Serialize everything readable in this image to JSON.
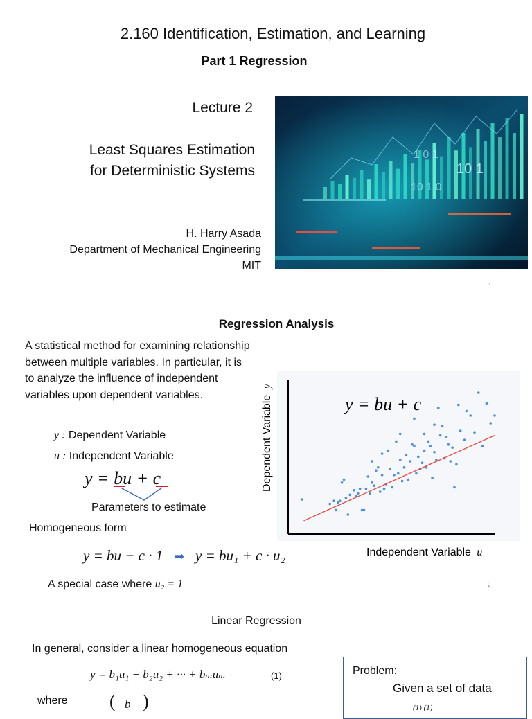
{
  "slide1": {
    "course_title": "2.160 Identification, Estimation, and Learning",
    "part": "Part 1  Regression",
    "lecture": "Lecture 2",
    "subject_line1": "Least Squares Estimation",
    "subject_line2": "for Deterministic Systems",
    "author": "H. Harry Asada",
    "department": "Department of Mechanical Engineering",
    "institution": "MIT",
    "image_overlay_numbers": [
      "1 0 1",
      "10 1",
      "10 1 0"
    ],
    "page_number": "1"
  },
  "slide2": {
    "heading": "Regression Analysis",
    "description": "A statistical method for examining relationship between multiple variables. In particular, it is to analyze the influence of  independent variables upon dependent variables.",
    "y_symbol": "y :",
    "y_label": "Dependent Variable",
    "u_symbol": "u :",
    "u_label": "Independent Variable",
    "equation": "y = bu + c",
    "parameters_note": "Parameters to estimate",
    "homogeneous_label": "Homogeneous form",
    "homogeneous_eq_left": "y = bu + c · 1",
    "homogeneous_eq_right": "y = bu₁ + c · u₂",
    "special_case_text": "A special case where",
    "special_case_eq": "u₂ = 1",
    "page_number": "2"
  },
  "chart_data": {
    "type": "scatter",
    "annotation": "y = bu + c",
    "xlabel_text": "Independent Variable",
    "xlabel_symbol": "u",
    "ylabel_text": "Dependent Variable",
    "ylabel_symbol": "y",
    "xlim": [
      0,
      10
    ],
    "ylim": [
      0,
      10
    ],
    "grid": false,
    "fit_line": {
      "x": [
        0.5,
        10
      ],
      "y": [
        0.6,
        6.2
      ],
      "color": "#e8473f"
    },
    "point_color": "#4a8fe0",
    "points": [
      [
        0.4,
        2.0
      ],
      [
        1.8,
        1.7
      ],
      [
        2.0,
        1.9
      ],
      [
        2.1,
        1.3
      ],
      [
        2.2,
        1.8
      ],
      [
        2.3,
        1.9
      ],
      [
        2.4,
        3.1
      ],
      [
        2.5,
        3.3
      ],
      [
        2.6,
        2.1
      ],
      [
        2.7,
        1.0
      ],
      [
        2.8,
        2.3
      ],
      [
        3.0,
        2.6
      ],
      [
        3.1,
        2.2
      ],
      [
        3.2,
        2.4
      ],
      [
        3.3,
        2.7
      ],
      [
        3.4,
        1.3
      ],
      [
        3.5,
        1.3
      ],
      [
        3.6,
        2.7
      ],
      [
        3.7,
        3.5
      ],
      [
        3.8,
        2.4
      ],
      [
        3.9,
        3.1
      ],
      [
        4.0,
        2.9
      ],
      [
        4.1,
        3.9
      ],
      [
        4.2,
        4.1
      ],
      [
        4.3,
        2.5
      ],
      [
        4.4,
        3.6
      ],
      [
        4.5,
        2.7
      ],
      [
        4.6,
        3.0
      ],
      [
        4.7,
        5.2
      ],
      [
        4.8,
        4.0
      ],
      [
        4.9,
        2.8
      ],
      [
        5.0,
        3.6
      ],
      [
        5.1,
        5.8
      ],
      [
        5.2,
        3.7
      ],
      [
        5.3,
        4.6
      ],
      [
        5.4,
        3.2
      ],
      [
        5.5,
        4.1
      ],
      [
        5.6,
        4.9
      ],
      [
        5.7,
        3.3
      ],
      [
        5.8,
        4.5
      ],
      [
        5.9,
        5.6
      ],
      [
        6.0,
        5.5
      ],
      [
        6.1,
        3.7
      ],
      [
        6.2,
        4.8
      ],
      [
        6.3,
        4.0
      ],
      [
        6.4,
        4.4
      ],
      [
        6.5,
        5.2
      ],
      [
        6.6,
        4.1
      ],
      [
        6.7,
        5.8
      ],
      [
        6.8,
        5.5
      ],
      [
        6.9,
        3.4
      ],
      [
        7.0,
        5.1
      ],
      [
        7.1,
        4.6
      ],
      [
        7.2,
        8.0
      ],
      [
        7.3,
        6.2
      ],
      [
        7.4,
        6.8
      ],
      [
        7.5,
        4.7
      ],
      [
        7.6,
        6.1
      ],
      [
        7.7,
        5.6
      ],
      [
        7.8,
        4.5
      ],
      [
        7.9,
        5.4
      ],
      [
        8.0,
        2.8
      ],
      [
        8.1,
        4.3
      ],
      [
        8.3,
        6.5
      ],
      [
        8.5,
        5.9
      ],
      [
        8.6,
        7.8
      ],
      [
        8.8,
        7.5
      ],
      [
        9.0,
        6.4
      ],
      [
        9.2,
        9.0
      ],
      [
        9.4,
        5.5
      ],
      [
        9.6,
        8.3
      ],
      [
        9.8,
        7.0
      ],
      [
        10.0,
        7.5
      ],
      [
        8.2,
        8.2
      ],
      [
        6.0,
        7.3
      ],
      [
        5.3,
        6.3
      ],
      [
        4.4,
        5.0
      ],
      [
        3.9,
        4.5
      ],
      [
        6.5,
        6.3
      ],
      [
        7.0,
        6.9
      ]
    ]
  },
  "slide3": {
    "heading": "Linear Regression",
    "intro": "In general, consider a linear homogeneous equation",
    "equation": "y = b₁u₁ + b₂u₂ + ··· + bₘuₘ",
    "equation_number": "(1)",
    "where_label": "where",
    "vector_first": "b",
    "problem_label": "Problem:",
    "problem_text": "Given a set of data",
    "data_superscripts": "(1)   (1)"
  }
}
